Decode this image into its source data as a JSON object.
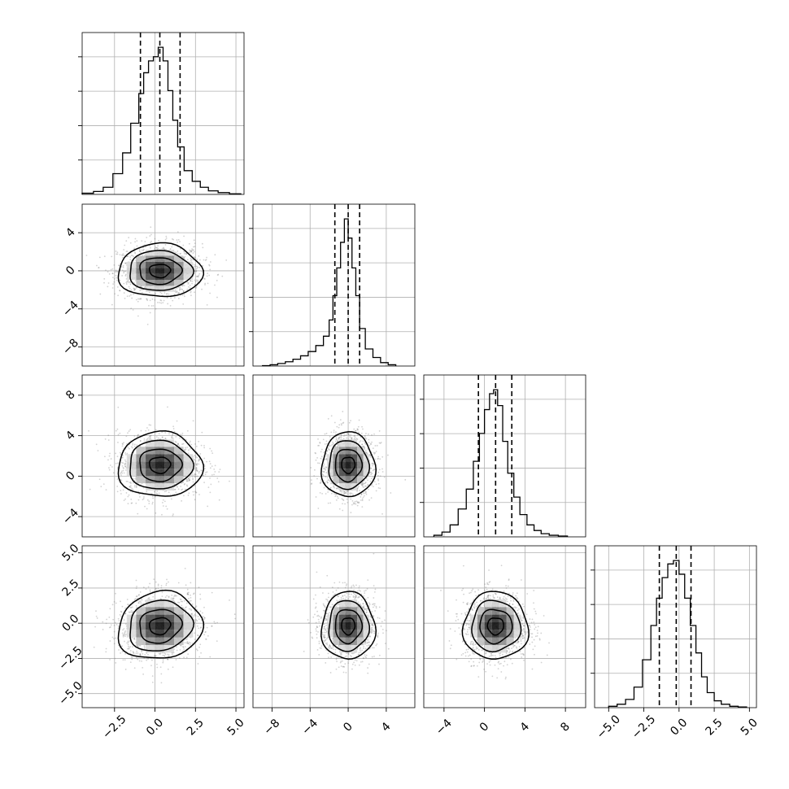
{
  "chart_data": {
    "type": "corner",
    "n_params": 4,
    "grid": true,
    "colors": {
      "line": "#000000",
      "grid": "#b0b0b0",
      "scatter": "#7f7f7f",
      "density_dark": "#000000",
      "density_light": "#ffffff"
    },
    "params": [
      {
        "index": 0,
        "mean": 0.3,
        "sd": 1.3,
        "range": [
          -4.5,
          5.5
        ],
        "quantiles": [
          -0.9,
          0.3,
          1.55
        ],
        "ticks": [
          -2.5,
          0.0,
          2.5,
          5.0
        ],
        "tick_labels": [
          "−2.5",
          "0.0",
          "2.5",
          "5.0"
        ]
      },
      {
        "index": 1,
        "mean": 0.0,
        "sd": 1.4,
        "range": [
          -10.0,
          7.0
        ],
        "quantiles": [
          -1.4,
          0.0,
          1.2
        ],
        "ticks": [
          -8,
          -4,
          0,
          4
        ],
        "tick_labels": [
          "−8",
          "−4",
          "0",
          "4"
        ]
      },
      {
        "index": 2,
        "mean": 1.1,
        "sd": 1.6,
        "range": [
          -6.0,
          10.0
        ],
        "quantiles": [
          -0.6,
          1.1,
          2.7
        ],
        "ticks": [
          -4,
          0,
          4,
          8
        ],
        "tick_labels": [
          "−4",
          "0",
          "4",
          "8"
        ]
      },
      {
        "index": 3,
        "mean": -0.2,
        "sd": 1.2,
        "range": [
          -6.0,
          5.5
        ],
        "quantiles": [
          -1.4,
          -0.2,
          0.85
        ],
        "ticks": [
          -5.0,
          -2.5,
          0.0,
          2.5,
          5.0
        ],
        "tick_labels": [
          "−5.0",
          "−2.5",
          "0.0",
          "2.5",
          "5.0"
        ]
      }
    ],
    "pairs": [
      {
        "x": 0,
        "y": 1,
        "rho": 0.0,
        "sx_scale": 1.0,
        "sy_scale": 1.0
      },
      {
        "x": 0,
        "y": 2,
        "rho": 0.0,
        "sx_scale": 1.0,
        "sy_scale": 1.0
      },
      {
        "x": 1,
        "y": 2,
        "rho": 0.0,
        "sx_scale": 1.0,
        "sy_scale": 1.0
      },
      {
        "x": 0,
        "y": 3,
        "rho": 0.1,
        "sx_scale": 1.0,
        "sy_scale": 1.0
      },
      {
        "x": 1,
        "y": 3,
        "rho": 0.0,
        "sx_scale": 1.0,
        "sy_scale": 1.0
      },
      {
        "x": 2,
        "y": 3,
        "rho": 0.0,
        "sx_scale": 1.0,
        "sy_scale": 1.0
      }
    ],
    "histograms": [
      {
        "param": 0,
        "bins": [
          -4.5,
          -3.8,
          -3.2,
          -2.6,
          -2.0,
          -1.5,
          -1.0,
          -0.7,
          -0.4,
          -0.1,
          0.2,
          0.5,
          0.8,
          1.1,
          1.4,
          1.8,
          2.3,
          2.8,
          3.3,
          3.9,
          4.6,
          5.3
        ],
        "counts": [
          2,
          5,
          12,
          35,
          70,
          120,
          170,
          205,
          225,
          232,
          248,
          225,
          175,
          125,
          80,
          40,
          22,
          12,
          6,
          3,
          1
        ]
      },
      {
        "param": 1,
        "bins": [
          -9.0,
          -8.2,
          -7.4,
          -6.6,
          -5.8,
          -5.0,
          -4.2,
          -3.4,
          -2.6,
          -2.0,
          -1.6,
          -1.2,
          -0.8,
          -0.4,
          0.0,
          0.4,
          0.8,
          1.2,
          1.8,
          2.6,
          3.4,
          4.2,
          5.0
        ],
        "counts": [
          1,
          3,
          6,
          10,
          16,
          24,
          34,
          48,
          70,
          108,
          165,
          230,
          290,
          345,
          300,
          230,
          165,
          88,
          40,
          20,
          8,
          3
        ]
      },
      {
        "param": 2,
        "bins": [
          -5.0,
          -4.2,
          -3.4,
          -2.6,
          -1.8,
          -1.1,
          -0.5,
          0.0,
          0.5,
          0.9,
          1.3,
          1.8,
          2.3,
          2.9,
          3.5,
          4.2,
          4.9,
          5.6,
          6.4,
          7.3,
          8.2
        ],
        "counts": [
          2,
          6,
          15,
          35,
          60,
          95,
          130,
          160,
          180,
          185,
          165,
          120,
          80,
          50,
          28,
          15,
          8,
          4,
          2,
          1
        ]
      },
      {
        "param": 3,
        "bins": [
          -5.0,
          -4.4,
          -3.8,
          -3.2,
          -2.6,
          -2.0,
          -1.6,
          -1.2,
          -0.8,
          -0.4,
          0.0,
          0.4,
          0.8,
          1.2,
          1.6,
          2.0,
          2.5,
          3.0,
          3.6,
          4.2,
          4.8
        ],
        "counts": [
          2,
          5,
          12,
          30,
          70,
          120,
          160,
          190,
          210,
          215,
          195,
          160,
          120,
          80,
          45,
          22,
          10,
          5,
          2,
          1
        ]
      }
    ],
    "quantile_levels": [
      0.16,
      0.5,
      0.84
    ],
    "contour_sigma_levels": [
      0.5,
      1.0,
      1.5,
      2.0
    ]
  }
}
